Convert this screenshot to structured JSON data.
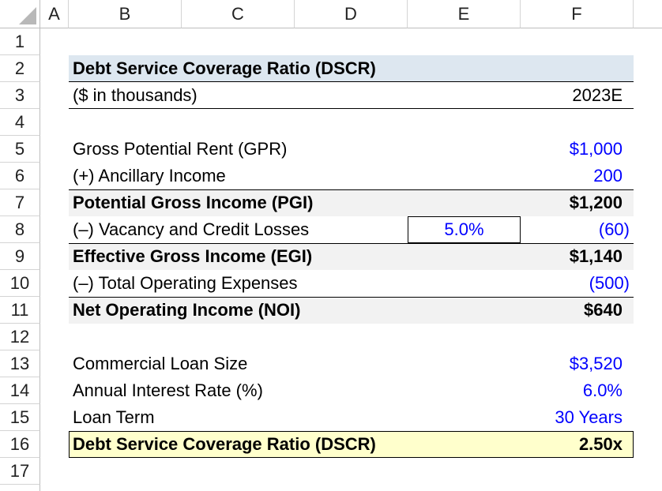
{
  "columns": [
    "A",
    "B",
    "C",
    "D",
    "E",
    "F"
  ],
  "rows": [
    "1",
    "2",
    "3",
    "4",
    "5",
    "6",
    "7",
    "8",
    "9",
    "10",
    "11",
    "12",
    "13",
    "14",
    "15",
    "16",
    "17"
  ],
  "model": {
    "title": "Debt Service Coverage Ratio (DSCR)",
    "units_label": "($ in thousands)",
    "year": "2023E",
    "gpr_label": "Gross Potential Rent (GPR)",
    "gpr_value": "$1,000",
    "ancillary_label": "(+) Ancillary Income",
    "ancillary_value": "200",
    "pgi_label": "Potential Gross Income (PGI)",
    "pgi_value": "$1,200",
    "vacancy_label": "(–) Vacancy and Credit Losses",
    "vacancy_pct": "5.0%",
    "vacancy_value": "(60)",
    "egi_label": "Effective Gross Income (EGI)",
    "egi_value": "$1,140",
    "opex_label": "(–) Total Operating Expenses",
    "opex_value": "(500)",
    "noi_label": "Net Operating Income (NOI)",
    "noi_value": "$640",
    "loan_size_label": "Commercial Loan Size",
    "loan_size_value": "$3,520",
    "interest_label": "Annual Interest Rate (%)",
    "interest_value": "6.0%",
    "term_label": "Loan Term",
    "term_value": "30 Years",
    "dscr_label": "Debt Service Coverage Ratio (DSCR)",
    "dscr_value": "2.50x"
  },
  "colors": {
    "input_blue": "#0000ff",
    "title_fill": "#dde7f0",
    "subtotal_fill": "#f2f2f2",
    "dscr_fill": "#ffffcc"
  }
}
